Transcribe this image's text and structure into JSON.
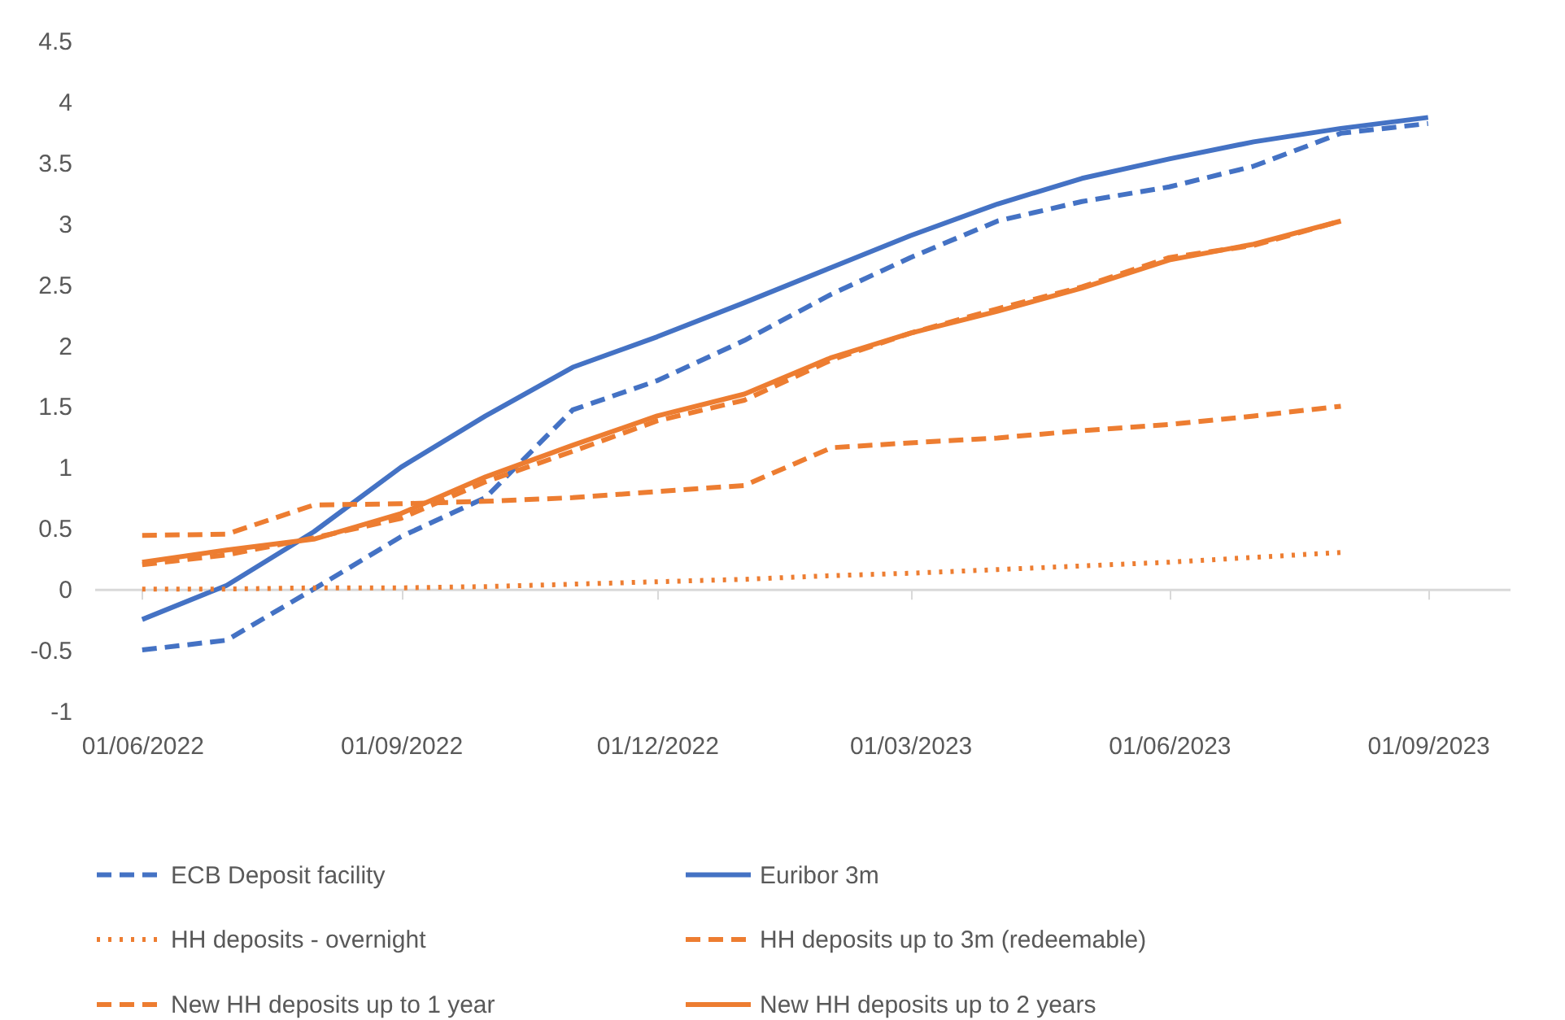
{
  "chart_data": {
    "type": "line",
    "x": [
      "2022-06-01",
      "2022-07-01",
      "2022-08-01",
      "2022-09-01",
      "2022-10-01",
      "2022-11-01",
      "2022-12-01",
      "2023-01-01",
      "2023-02-01",
      "2023-03-01",
      "2023-04-01",
      "2023-05-01",
      "2023-06-01",
      "2023-07-01",
      "2023-08-01",
      "2023-09-01"
    ],
    "series": [
      {
        "name": "ECB Deposit facility",
        "color": "#4472c4",
        "line_style": "dashed",
        "values": [
          -0.5,
          -0.42,
          0.0,
          0.43,
          0.75,
          1.47,
          1.71,
          2.04,
          2.42,
          2.72,
          3.02,
          3.18,
          3.3,
          3.47,
          3.74,
          3.82
        ]
      },
      {
        "name": "Euribor 3m",
        "color": "#4472c4",
        "line_style": "solid",
        "values": [
          -0.25,
          0.03,
          0.47,
          1.0,
          1.42,
          1.82,
          2.07,
          2.35,
          2.64,
          2.9,
          3.16,
          3.37,
          3.53,
          3.67,
          3.78,
          3.87
        ]
      },
      {
        "name": "HH deposits - overnight",
        "color": "#ed7d31",
        "line_style": "dotted",
        "values": [
          0.0,
          0.0,
          0.01,
          0.01,
          0.02,
          0.04,
          0.06,
          0.08,
          0.11,
          0.13,
          0.16,
          0.19,
          0.22,
          0.26,
          0.3,
          null
        ]
      },
      {
        "name": "HH deposits up to 3m (redeemable)",
        "color": "#ed7d31",
        "line_style": "dashed",
        "values": [
          0.44,
          0.45,
          0.69,
          0.7,
          0.72,
          0.75,
          0.8,
          0.85,
          1.16,
          1.2,
          1.24,
          1.3,
          1.35,
          1.42,
          1.5,
          null
        ]
      },
      {
        "name": "New HH deposits up to 1 year",
        "color": "#ed7d31",
        "line_style": "dashed",
        "values": [
          0.2,
          0.28,
          0.42,
          0.58,
          0.88,
          1.13,
          1.38,
          1.55,
          1.88,
          2.1,
          2.3,
          2.48,
          2.72,
          2.82,
          3.02,
          null
        ]
      },
      {
        "name": "New HH deposits up to 2 years",
        "color": "#ed7d31",
        "line_style": "solid",
        "values": [
          0.22,
          0.32,
          0.41,
          0.62,
          0.92,
          1.18,
          1.42,
          1.6,
          1.9,
          2.1,
          2.28,
          2.47,
          2.7,
          2.83,
          3.02,
          null
        ]
      }
    ],
    "xlim": [
      "2022-05-15",
      "2023-09-30"
    ],
    "xticks": [
      {
        "value": "2022-06-01",
        "label": "01/06/2022"
      },
      {
        "value": "2022-09-01",
        "label": "01/09/2022"
      },
      {
        "value": "2022-12-01",
        "label": "01/12/2022"
      },
      {
        "value": "2023-03-01",
        "label": "01/03/2023"
      },
      {
        "value": "2023-06-01",
        "label": "01/06/2023"
      },
      {
        "value": "2023-09-01",
        "label": "01/09/2023"
      }
    ],
    "ylim": [
      -1,
      4.5
    ],
    "yticks": [
      -1,
      -0.5,
      0,
      0.5,
      1,
      1.5,
      2,
      2.5,
      3,
      3.5,
      4,
      4.5
    ],
    "legend": "bottom"
  }
}
